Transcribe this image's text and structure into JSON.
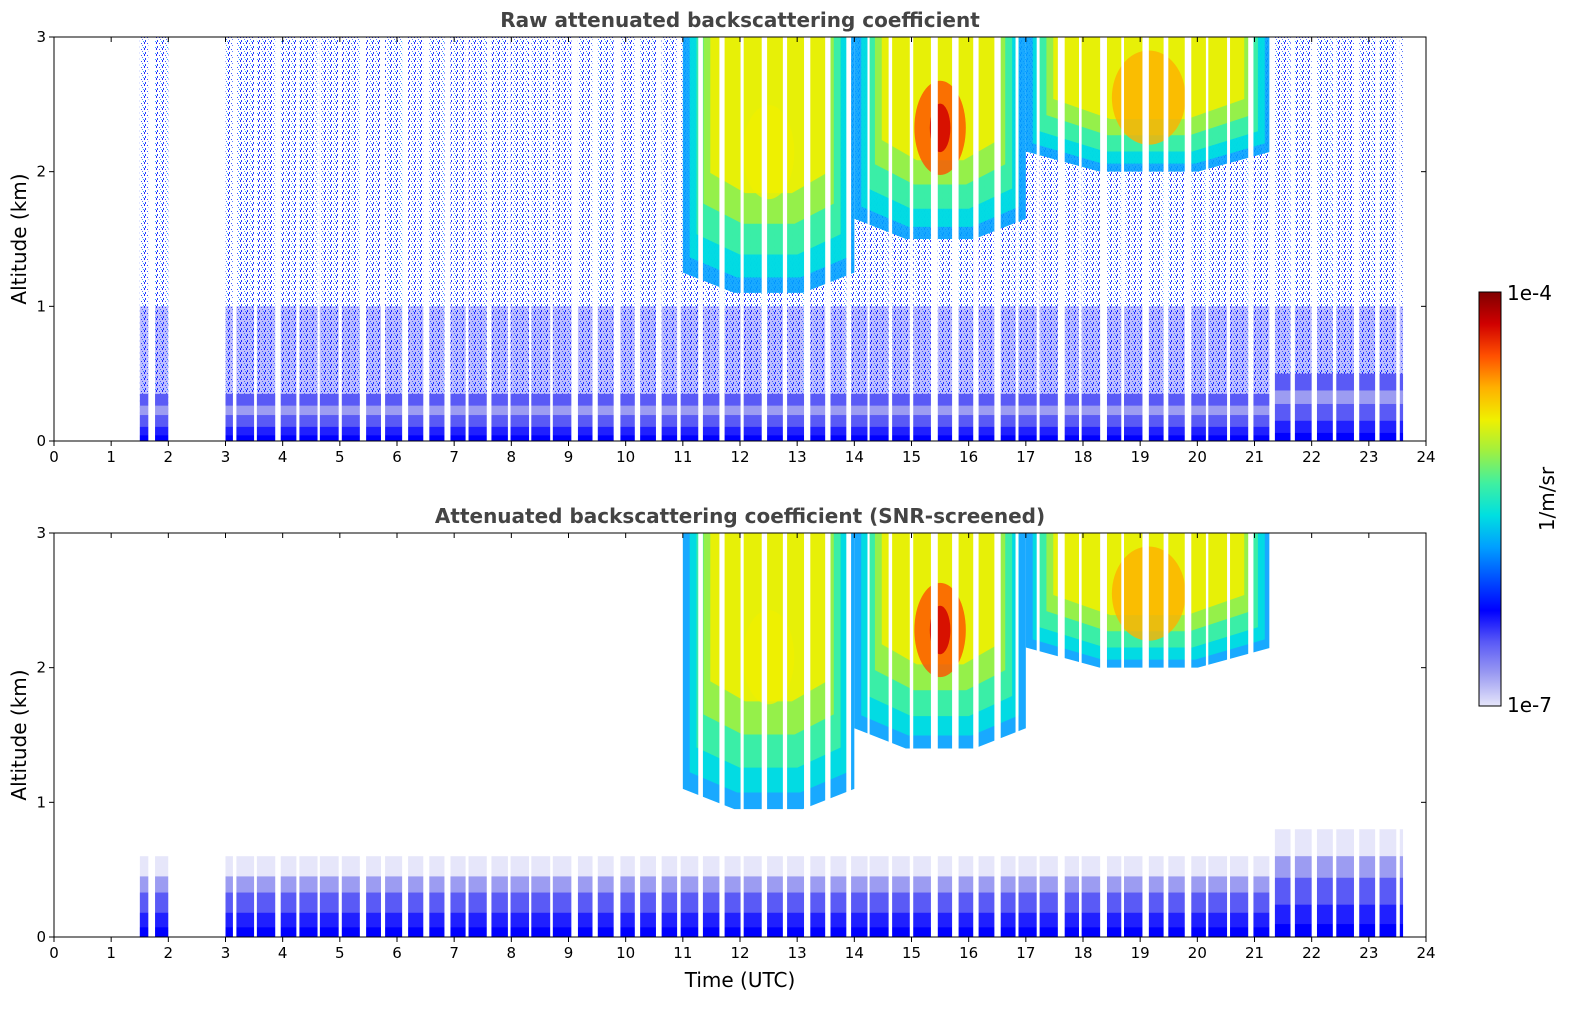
{
  "chart_data": [
    {
      "type": "heatmap",
      "title": "Raw attenuated backscattering coefficient",
      "xlabel": "",
      "ylabel": "Altitude (km)",
      "xlim": [
        0,
        24
      ],
      "ylim": [
        0,
        3
      ],
      "xticks": [
        "0",
        "1",
        "2",
        "3",
        "4",
        "5",
        "6",
        "7",
        "8",
        "9",
        "10",
        "11",
        "12",
        "13",
        "14",
        "15",
        "16",
        "17",
        "18",
        "19",
        "20",
        "21",
        "22",
        "23",
        "24"
      ],
      "yticks": [
        "0",
        "1",
        "2",
        "3"
      ],
      "data_coverage_hours": [
        1.5,
        23.6
      ],
      "gaps_hours": [
        [
          2.0,
          3.0
        ]
      ],
      "surface_layer_top_km": {
        "1.5-21": 0.35,
        "21.3-23.6": 0.5
      },
      "cloud_features": [
        {
          "x_range": [
            11.0,
            14.0
          ],
          "base_km": 1.1,
          "top_km": 3.0,
          "peak": "yellow"
        },
        {
          "x_range": [
            14.0,
            17.0
          ],
          "base_km": 1.5,
          "top_km": 3.0,
          "peak": "red"
        },
        {
          "x_range": [
            17.0,
            21.3
          ],
          "base_km": 2.0,
          "top_km": 3.0,
          "peak": "orange"
        }
      ]
    },
    {
      "type": "heatmap",
      "title": "Attenuated backscattering coefficient (SNR-screened)",
      "xlabel": "Time (UTC)",
      "ylabel": "Altitude (km)",
      "xlim": [
        0,
        24
      ],
      "ylim": [
        0,
        3
      ],
      "xticks": [
        "0",
        "1",
        "2",
        "3",
        "4",
        "5",
        "6",
        "7",
        "8",
        "9",
        "10",
        "11",
        "12",
        "13",
        "14",
        "15",
        "16",
        "17",
        "18",
        "19",
        "20",
        "21",
        "22",
        "23",
        "24"
      ],
      "yticks": [
        "0",
        "1",
        "2",
        "3"
      ],
      "data_coverage_hours": [
        1.5,
        23.6
      ],
      "gaps_hours": [
        [
          2.0,
          3.0
        ]
      ],
      "surface_layer_top_km": {
        "1.5-21": 0.6,
        "21.3-23.6": 0.8
      },
      "cloud_features": [
        {
          "x_range": [
            11.0,
            14.0
          ],
          "base_km": 0.95,
          "top_km": 3.0,
          "peak": "yellow"
        },
        {
          "x_range": [
            14.0,
            17.0
          ],
          "base_km": 1.4,
          "top_km": 3.0,
          "peak": "red"
        },
        {
          "x_range": [
            17.0,
            21.3
          ],
          "base_km": 2.0,
          "top_km": 3.0,
          "peak": "orange"
        }
      ]
    }
  ],
  "colorbar": {
    "label": "1/m/sr",
    "min_label": "1e-7",
    "max_label": "1e-4",
    "colors": [
      "#e6e6fa",
      "#9c9cf2",
      "#5a5af6",
      "#0000ff",
      "#0050ff",
      "#00a0ff",
      "#00e0e0",
      "#40f0a0",
      "#a0f040",
      "#f0f000",
      "#ffb000",
      "#ff5000",
      "#d00000",
      "#800000"
    ]
  }
}
